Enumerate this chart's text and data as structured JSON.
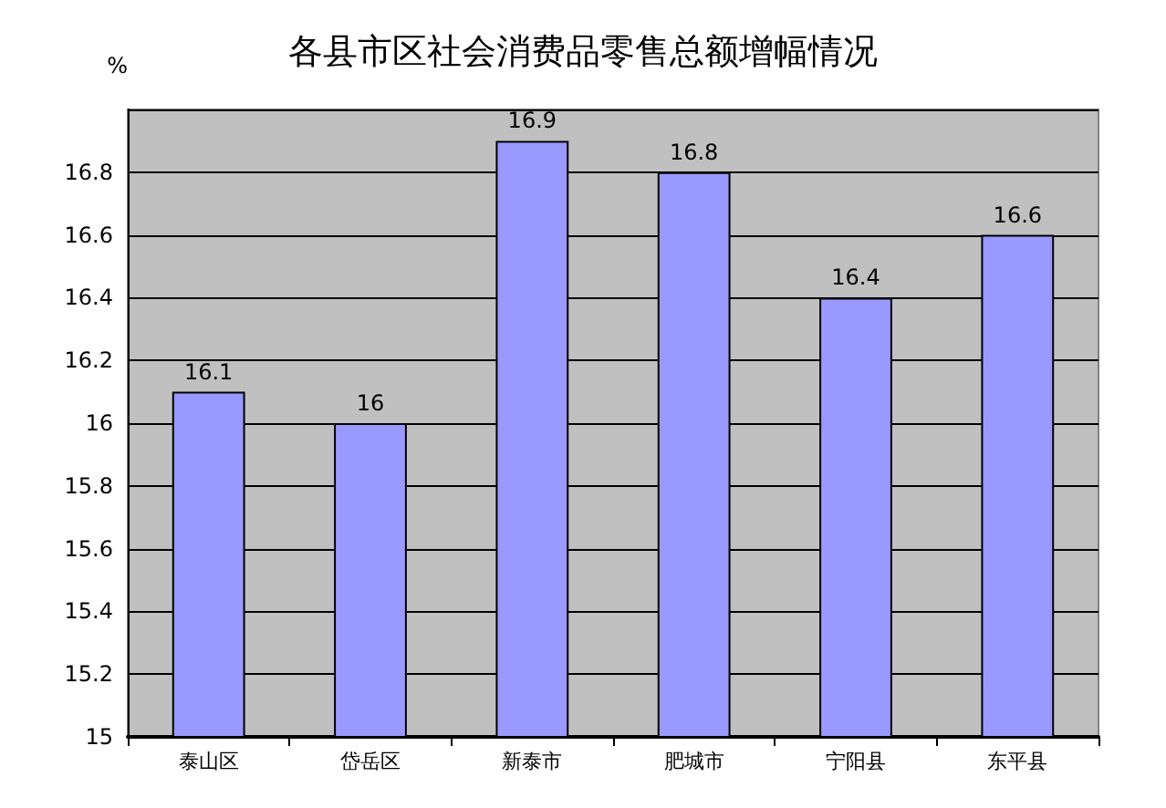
{
  "chart_data": {
    "type": "bar",
    "title": "各县市区社会消费品零售总额增幅情况",
    "ylabel": "%",
    "categories": [
      "泰山区",
      "岱岳区",
      "新泰市",
      "肥城市",
      "宁阳县",
      "东平县"
    ],
    "values": [
      16.1,
      16,
      16.9,
      16.8,
      16.4,
      16.6
    ],
    "color": "#9999ff",
    "ylim": [
      15,
      17
    ],
    "yticks": [
      15,
      15.2,
      15.4,
      15.6,
      15.8,
      16,
      16.2,
      16.4,
      16.6,
      16.8,
      {
        "value": 17,
        "label": null
      }
    ],
    "grid": "y",
    "data_labels": true
  }
}
